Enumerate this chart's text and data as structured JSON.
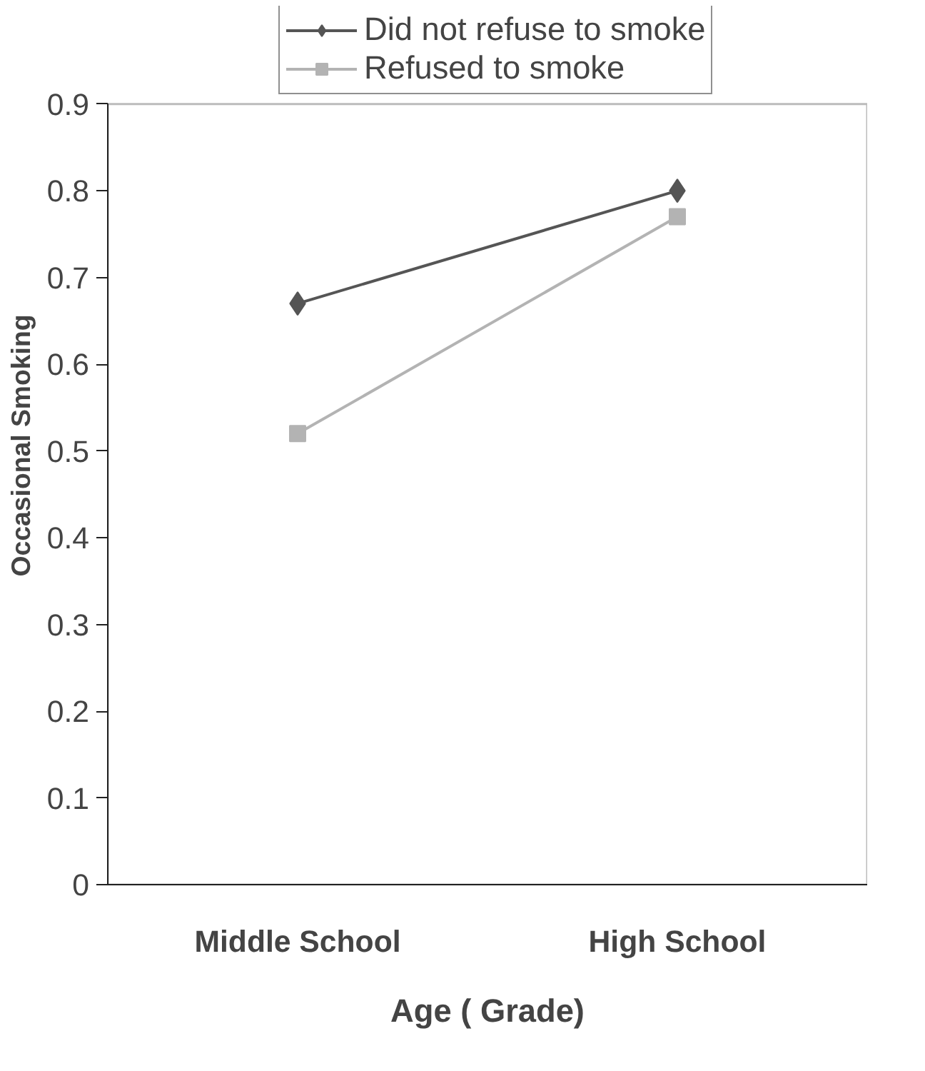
{
  "chart_data": {
    "type": "line",
    "xlabel": "Age ( Grade)",
    "ylabel": "Occasional Smoking",
    "categories": [
      "Middle School",
      "High School"
    ],
    "series": [
      {
        "name": "Did not refuse to smoke",
        "color": "#555555",
        "marker": "diamond",
        "values": [
          0.67,
          0.8
        ]
      },
      {
        "name": "Refused to smoke",
        "color": "#b3b3b3",
        "marker": "square",
        "values": [
          0.52,
          0.77
        ]
      }
    ],
    "ylim": [
      0,
      0.9
    ],
    "yticks": [
      0,
      0.1,
      0.2,
      0.3,
      0.4,
      0.5,
      0.6,
      0.7,
      0.8,
      0.9
    ],
    "grid": false,
    "legend": "top",
    "line_style": "solid"
  }
}
